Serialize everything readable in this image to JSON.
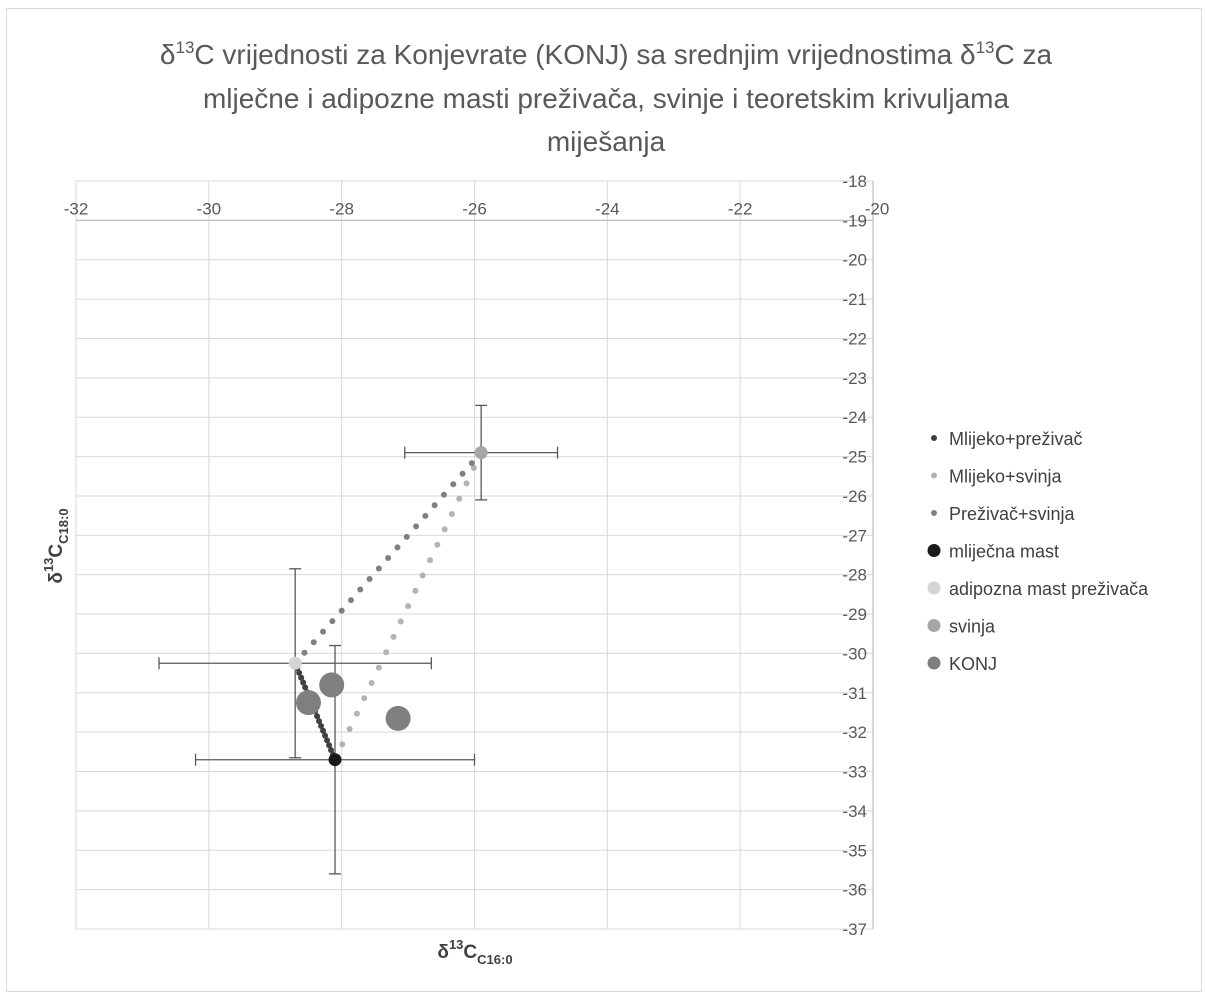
{
  "chart_data": {
    "type": "scatter",
    "title": {
      "line1": {
        "pre": "δ",
        "sup1": "13",
        "mid": "C vrijednosti za Konjevrate (KONJ) sa srednjim vrijednostima δ",
        "sup2": "13",
        "post": "C  za"
      },
      "line2": "mlječne i adipozne masti preživača, svinje i teoretskim krivuljama",
      "line3": "miješanja"
    },
    "xlabel": {
      "main": "δ",
      "sup": "13",
      "c": "C",
      "sub": "C16:0"
    },
    "ylabel": {
      "main": "δ",
      "sup": "13",
      "c": "C",
      "sub": "C18:0"
    },
    "xlim": [
      -32,
      -20
    ],
    "ylim": [
      -37,
      -18
    ],
    "x_ticks": [
      "-32",
      "-30",
      "-28",
      "-26",
      "-24",
      "-22",
      "-20"
    ],
    "y_ticks": [
      "-18",
      "-19",
      "-20",
      "-21",
      "-22",
      "-23",
      "-24",
      "-25",
      "-26",
      "-27",
      "-28",
      "-29",
      "-30",
      "-31",
      "-32",
      "-33",
      "-34",
      "-35",
      "-36",
      "-37"
    ],
    "grid": true,
    "legend_position": "right",
    "references": {
      "mlijecna": {
        "x": -28.1,
        "y": -32.7,
        "xerr": 2.1,
        "yerr": 2.9
      },
      "adipozna": {
        "x": -28.7,
        "y": -30.25,
        "xerr": 2.05,
        "yerr": 2.4
      },
      "svinja": {
        "x": -25.9,
        "y": -24.9,
        "xerr": 1.15,
        "yerr": 1.2
      }
    },
    "series": [
      {
        "name": "Mlijeko+preživač",
        "color": "#404040",
        "mix": [
          "mlijecna",
          "adipozna"
        ],
        "marker": "small"
      },
      {
        "name": "Mlijeko+svinja",
        "color": "#b3b3b3",
        "mix": [
          "mlijecna",
          "svinja"
        ],
        "marker": "small"
      },
      {
        "name": "Preživač+svinja",
        "color": "#808080",
        "mix": [
          "adipozna",
          "svinja"
        ],
        "marker": "small"
      },
      {
        "name": "mliječna mast",
        "color": "#1a1a1a",
        "ref": "mlijecna",
        "marker": "medium"
      },
      {
        "name": "adipozna mast preživača",
        "color": "#d4d4d4",
        "ref": "adipozna",
        "marker": "medium"
      },
      {
        "name": "svinja",
        "color": "#a6a6a6",
        "ref": "svinja",
        "marker": "medium"
      },
      {
        "name": "KONJ",
        "color": "#7f7f7f",
        "marker": "large",
        "points": [
          {
            "x": -28.5,
            "y": -31.25
          },
          {
            "x": -28.15,
            "y": -30.8
          },
          {
            "x": -27.15,
            "y": -31.65
          }
        ]
      }
    ]
  }
}
